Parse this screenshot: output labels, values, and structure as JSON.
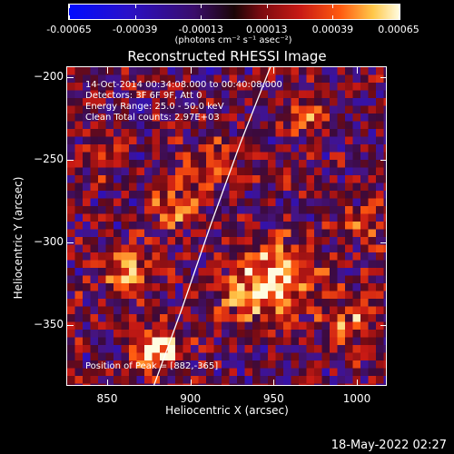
{
  "colorbar": {
    "tick_labels": [
      "-0.00065",
      "-0.00039",
      "-0.00013",
      "0.00013",
      "0.00039",
      "0.00065"
    ],
    "tick_values": [
      -0.00065,
      -0.00039,
      -0.00013,
      0.00013,
      0.00039,
      0.00065
    ],
    "unit_label": "(photons cm⁻² s⁻¹ asec⁻²)",
    "colors": [
      "#000cff",
      "#3a0d6a",
      "#1a0506",
      "#c81a14",
      "#ff5a10",
      "#fffce0"
    ]
  },
  "chart_data": {
    "type": "heatmap",
    "title": "Reconstructed RHESSI Image",
    "xlabel": "Heliocentric X (arcsec)",
    "ylabel": "Heliocentric Y (arcsec)",
    "xlim": [
      826,
      1018
    ],
    "ylim": [
      -387,
      -194
    ],
    "x_ticks": [
      850,
      900,
      950,
      1000
    ],
    "y_ticks": [
      -200,
      -250,
      -300,
      -350
    ],
    "x_tick_labels": [
      "850",
      "900",
      "950",
      "1000"
    ],
    "y_tick_labels": [
      "−200",
      "−250",
      "−300",
      "−350"
    ],
    "annotations": [
      "14-Oct-2014 00:34:08.000 to 00:40:08.000",
      "Detectors: 3F 6F 9F, Att 0",
      "Energy Range: 25.0 - 50.0 keV",
      "Clean    Total counts: 2.97E+03"
    ],
    "peak_label": "Position of Peak = [882,-365]",
    "peak": [
      882,
      -365
    ],
    "limb_curve": {
      "x": [
        878,
        895,
        912,
        930,
        948
      ],
      "y": [
        -387,
        -340,
        -290,
        -240,
        -194
      ]
    }
  },
  "timestamp": "18-May-2022 02:27"
}
